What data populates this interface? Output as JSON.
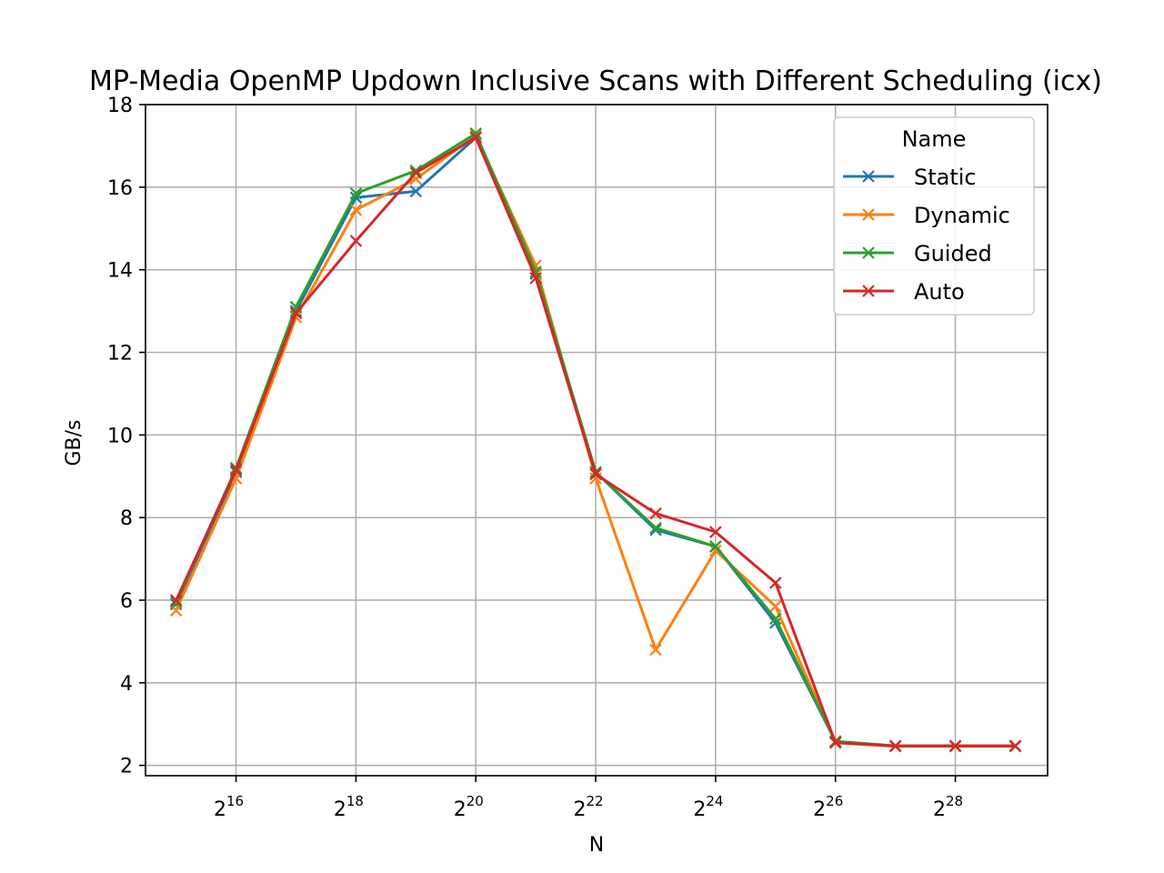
{
  "chart_data": {
    "type": "line",
    "title": "MP-Media OpenMP Updown Inclusive Scans with Different Scheduling (icx)",
    "xlabel": "N",
    "ylabel": "GB/s",
    "x_scale": "log2",
    "x": [
      32768,
      65536,
      131072,
      262144,
      524288,
      1048576,
      2097152,
      4194304,
      8388608,
      16777216,
      33554432,
      67108864,
      134217728,
      268435456,
      536870912
    ],
    "xlim": [
      23000,
      780000000
    ],
    "ylim": [
      1.75,
      18
    ],
    "x_ticks": [
      {
        "base": "2",
        "exp": "16",
        "value": 65536
      },
      {
        "base": "2",
        "exp": "18",
        "value": 262144
      },
      {
        "base": "2",
        "exp": "20",
        "value": 1048576
      },
      {
        "base": "2",
        "exp": "22",
        "value": 4194304
      },
      {
        "base": "2",
        "exp": "24",
        "value": 16777216
      },
      {
        "base": "2",
        "exp": "26",
        "value": 67108864
      },
      {
        "base": "2",
        "exp": "28",
        "value": 268435456
      }
    ],
    "y_ticks": [
      {
        "label": "2",
        "value": 2
      },
      {
        "label": "4",
        "value": 4
      },
      {
        "label": "6",
        "value": 6
      },
      {
        "label": "8",
        "value": 8
      },
      {
        "label": "10",
        "value": 10
      },
      {
        "label": "12",
        "value": 12
      },
      {
        "label": "14",
        "value": 14
      },
      {
        "label": "16",
        "value": 16
      },
      {
        "label": "18",
        "value": 18
      }
    ],
    "grid": true,
    "marker": "x",
    "legend": {
      "title": "Name",
      "position": "top-right"
    },
    "series": [
      {
        "name": "Static",
        "color": "#1f77b4",
        "values": [
          5.9,
          9.1,
          13.0,
          15.75,
          15.9,
          17.2,
          13.9,
          9.1,
          7.7,
          7.3,
          5.45,
          2.58,
          2.47,
          2.47,
          2.47
        ]
      },
      {
        "name": "Dynamic",
        "color": "#ff7f0e",
        "values": [
          5.75,
          8.95,
          12.85,
          15.45,
          16.2,
          17.25,
          14.1,
          8.95,
          4.8,
          7.2,
          5.85,
          2.55,
          2.46,
          2.46,
          2.46
        ]
      },
      {
        "name": "Guided",
        "color": "#2ca02c",
        "values": [
          5.95,
          9.2,
          13.1,
          15.85,
          16.4,
          17.3,
          13.95,
          9.1,
          7.75,
          7.3,
          5.55,
          2.58,
          2.47,
          2.47,
          2.47
        ]
      },
      {
        "name": "Auto",
        "color": "#d62728",
        "values": [
          6.0,
          9.15,
          12.95,
          14.7,
          16.35,
          17.2,
          13.8,
          9.05,
          8.1,
          7.65,
          6.42,
          2.55,
          2.47,
          2.47,
          2.47
        ]
      }
    ]
  }
}
